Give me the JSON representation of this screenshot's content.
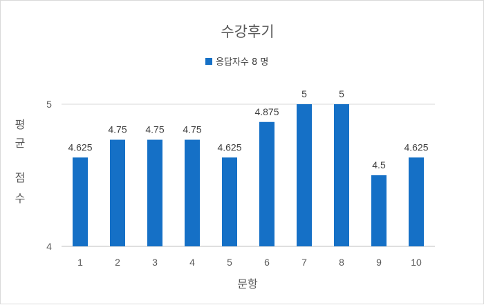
{
  "chart_data": {
    "type": "bar",
    "title": "수강후기",
    "xlabel": "문항",
    "ylabel": "평균 점수",
    "categories": [
      "1",
      "2",
      "3",
      "4",
      "5",
      "6",
      "7",
      "8",
      "9",
      "10"
    ],
    "series": [
      {
        "name": "응답자수 8 명",
        "values": [
          4.625,
          4.75,
          4.75,
          4.75,
          4.625,
          4.875,
          5,
          5,
          4.5,
          4.625
        ]
      }
    ],
    "ylim": [
      4,
      5
    ],
    "yticks": [
      "4",
      "5"
    ],
    "data_labels": [
      "4.625",
      "4.75",
      "4.75",
      "4.75",
      "4.625",
      "4.875",
      "5",
      "5",
      "4.5",
      "4.625"
    ],
    "grid": true,
    "legend_position": "top",
    "color": "#1570C6"
  }
}
